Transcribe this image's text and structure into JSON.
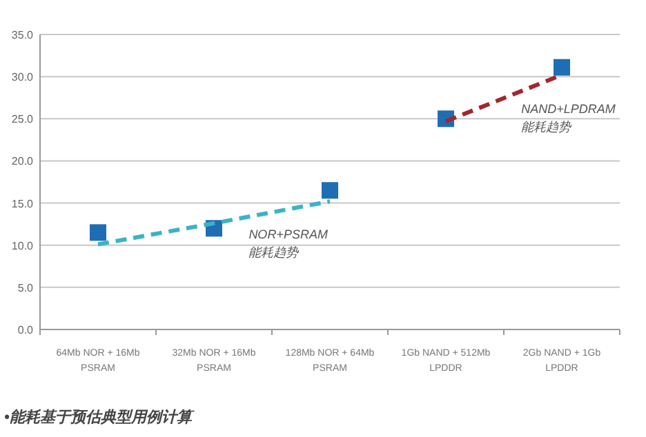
{
  "chart_data": {
    "type": "scatter",
    "categories": [
      "64Mb NOR + 16Mb\nPSRAM",
      "32Mb NOR + 16Mb\nPSRAM",
      "128Mb NOR + 64Mb\nPSRAM",
      "1Gb NAND + 512Mb\nLPDDR",
      "2Gb NAND + 1Gb\nLPDDR"
    ],
    "series": [
      {
        "color": "#1f6db3",
        "marker": "square",
        "values": [
          11.5,
          12.0,
          16.5,
          25.0,
          31.1
        ]
      },
      {
        "type": "line",
        "name": "NOR+PSRAM\n能耗趋势",
        "color": "#3bb3c6",
        "line_style": "dashed",
        "values": [
          10.1,
          12.6,
          15.2,
          null,
          null
        ]
      },
      {
        "type": "line",
        "name": "NAND+LPDRAM\n能耗趋势",
        "color": "#a3262e",
        "line_style": "dashed",
        "values": [
          null,
          null,
          null,
          24.7,
          30.2
        ]
      }
    ],
    "ylim": [
      0,
      35
    ],
    "yticks": [
      {
        "value": 0,
        "label": "0.0"
      },
      {
        "value": 5,
        "label": "5.0"
      },
      {
        "value": 10,
        "label": "10.0"
      },
      {
        "value": 15,
        "label": "15.0"
      },
      {
        "value": 20,
        "label": "20.0"
      },
      {
        "value": 25,
        "label": "25.0"
      },
      {
        "value": 30,
        "label": "30.0"
      },
      {
        "value": 35,
        "label": "35.0"
      }
    ],
    "grid": "y",
    "annotations": [
      "•能耗基于预估典型用例计算"
    ]
  }
}
